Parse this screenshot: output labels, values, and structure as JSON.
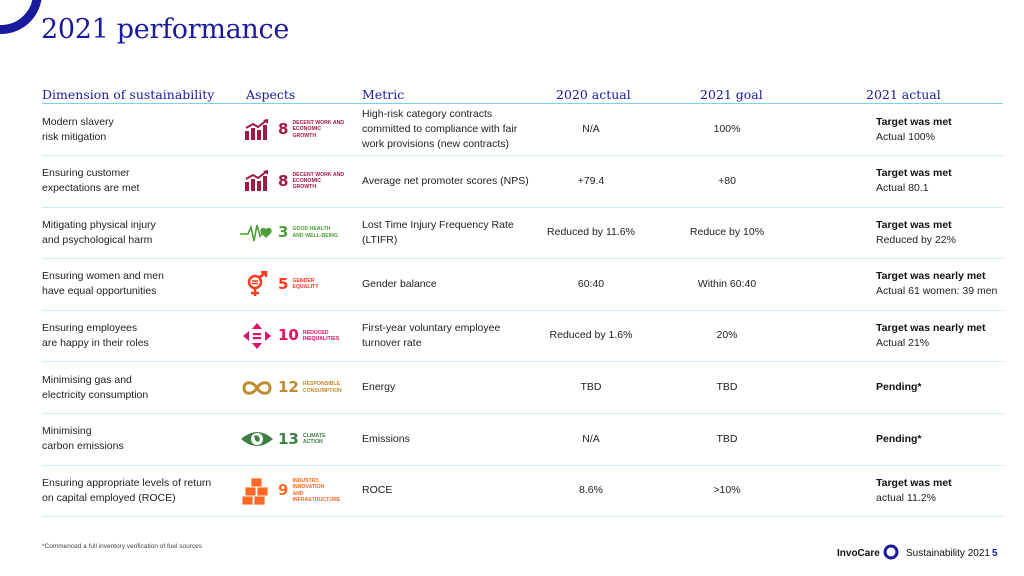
{
  "title": "2021 performance",
  "headers": {
    "dimension": "Dimension of sustainability",
    "aspects": "Aspects",
    "metric": "Metric",
    "actual_2020": "2020 actual",
    "goal_2021": "2021 goal",
    "actual_2021": "2021 actual"
  },
  "rows": [
    {
      "dim1": "Modern slavery",
      "dim2": "risk mitigation",
      "sdg_num": "8",
      "sdg_label1": "DECENT WORK AND",
      "sdg_label2": "ECONOMIC GROWTH",
      "sdg_color": "#a21942",
      "sdg_icon": "growth-chart-icon",
      "metric": "High-risk category contracts committed to compliance with fair work provisions (new contracts)",
      "a2020": "N/A",
      "g2021": "100%",
      "status": "Target was met",
      "detail": "Actual 100%"
    },
    {
      "dim1": "Ensuring customer",
      "dim2": "expectations are met",
      "sdg_num": "8",
      "sdg_label1": "DECENT WORK AND",
      "sdg_label2": "ECONOMIC GROWTH",
      "sdg_color": "#a21942",
      "sdg_icon": "growth-chart-icon",
      "metric": "Average net promoter scores (NPS)",
      "a2020": "+79.4",
      "g2021": "+80",
      "status": "Target was met",
      "detail": "Actual 80.1"
    },
    {
      "dim1": "Mitigating physical injury",
      "dim2": "and psychological harm",
      "sdg_num": "3",
      "sdg_label1": "GOOD HEALTH",
      "sdg_label2": "AND WELL-BEING",
      "sdg_color": "#4c9f38",
      "sdg_icon": "heartbeat-icon",
      "metric": "Lost Time Injury Frequency Rate (LTIFR)",
      "a2020": "Reduced by 11.6%",
      "g2021": "Reduce by 10%",
      "status": "Target was met",
      "detail": "Reduced by 22%"
    },
    {
      "dim1": "Ensuring women and men",
      "dim2": "have equal opportunities",
      "sdg_num": "5",
      "sdg_label1": "GENDER",
      "sdg_label2": "EQUALITY",
      "sdg_color": "#ff3a21",
      "sdg_icon": "gender-symbol-icon",
      "metric": "Gender balance",
      "a2020": "60:40",
      "g2021": "Within 60:40",
      "status": "Target was nearly met",
      "detail": "Actual 61 women: 39 men"
    },
    {
      "dim1": "Ensuring employees",
      "dim2": "are happy in their roles",
      "sdg_num": "10",
      "sdg_label1": "REDUCED",
      "sdg_label2": "INEQUALITIES",
      "sdg_color": "#dd1367",
      "sdg_icon": "equality-arrows-icon",
      "metric": "First-year voluntary employee turnover rate",
      "a2020": "Reduced by 1.6%",
      "g2021": "20%",
      "status": "Target was nearly met",
      "detail": "Actual 21%"
    },
    {
      "dim1": "Minimising gas and",
      "dim2": "electricity consumption",
      "sdg_num": "12",
      "sdg_label1": "RESPONSIBLE",
      "sdg_label2": "CONSUMPTION",
      "sdg_color": "#bf8b2e",
      "sdg_icon": "infinity-loop-icon",
      "metric": "Energy",
      "a2020": "TBD",
      "g2021": "TBD",
      "status": "Pending*",
      "detail": ""
    },
    {
      "dim1": "Minimising",
      "dim2": "carbon emissions",
      "sdg_num": "13",
      "sdg_label1": "CLIMATE",
      "sdg_label2": "ACTION",
      "sdg_color": "#3f7e44",
      "sdg_icon": "eye-globe-icon",
      "metric": "Emissions",
      "a2020": "N/A",
      "g2021": "TBD",
      "status": "Pending*",
      "detail": ""
    },
    {
      "dim1": "Ensuring appropriate levels of return",
      "dim2": "on capital employed (ROCE)",
      "sdg_num": "9",
      "sdg_label1": "INDUSTRY, INNOVATION",
      "sdg_label2": "AND INFRASTRUCTURE",
      "sdg_color": "#fd6925",
      "sdg_icon": "stacked-cubes-icon",
      "metric": "ROCE",
      "a2020": "8.6%",
      "g2021": ">10%",
      "status": "Target was met",
      "detail": "actual 11.2%"
    }
  ],
  "footnote": "*Commenced a full inventory verification of fuel sources",
  "footer": {
    "brand": "InvoCare",
    "label": "Sustainability 2021",
    "page": "5"
  },
  "colors": {
    "brand_blue": "#1a1a9e",
    "rule": "#7dd3e6"
  }
}
